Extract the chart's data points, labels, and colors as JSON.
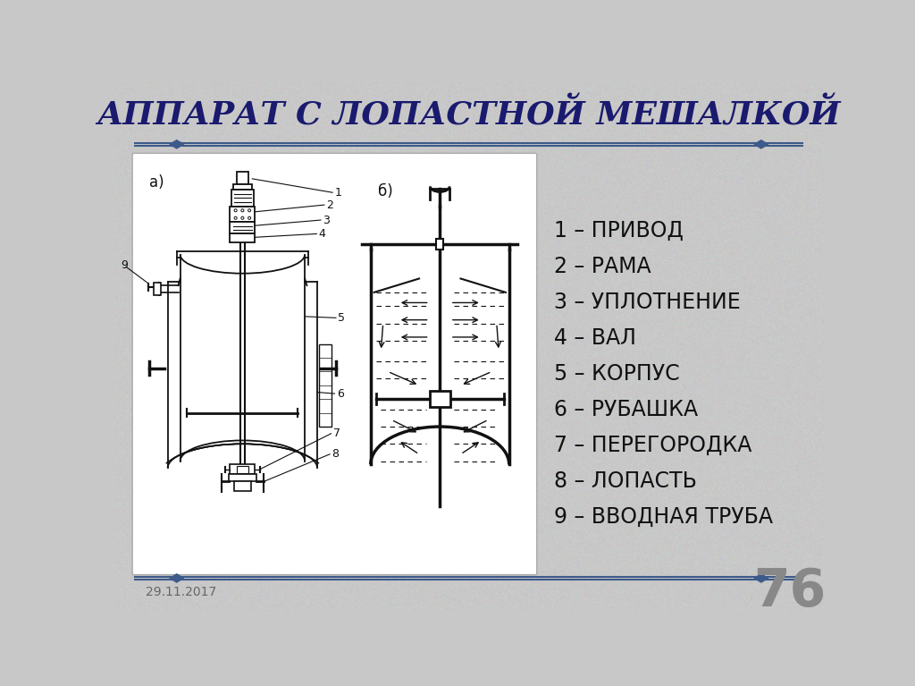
{
  "title": "АППАРАТ С ЛОПАСТНОЙ МЕШАЛКОЙ",
  "background_color": "#c8c8c8",
  "panel_bg": "#e0e0e0",
  "white_box_color": "#f5f5f5",
  "title_color": "#1a1a6e",
  "legend_items": [
    "1 – ПРИВОД",
    "2 – РАМА",
    "3 – УПЛОТНЕНИЕ",
    "4 – ВАЛ",
    "5 – КОРПУС",
    "6 – РУБАШКА",
    "7 – ПЕРЕГОРОДКА",
    "8 – ЛОПАСТЬ",
    "9 – ВВОДНАЯ ТРУБА"
  ],
  "date_text": "29.11.2017",
  "page_number": "76",
  "divider_color": "#3d5a8a",
  "line_color": "#111111"
}
